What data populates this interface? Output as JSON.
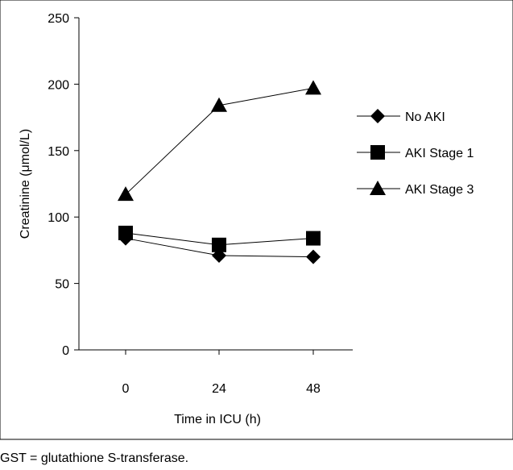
{
  "chart_data": {
    "type": "line",
    "x": [
      0,
      24,
      48
    ],
    "categories": [
      "0",
      "24",
      "48"
    ],
    "xlabel": "Time in ICU (h)",
    "ylabel": "Creatinine (μmol/L)",
    "ylim": [
      0,
      250
    ],
    "yticks": [
      0,
      50,
      100,
      150,
      200,
      250
    ],
    "ytick_labels": [
      "0",
      "50",
      "100",
      "150",
      "200",
      "250"
    ],
    "grid": false,
    "legend_position": "right",
    "series": [
      {
        "name": "No AKI",
        "marker": "diamond",
        "values": [
          84,
          71,
          70
        ]
      },
      {
        "name": "AKI Stage 1",
        "marker": "square",
        "values": [
          88,
          79,
          84
        ]
      },
      {
        "name": "AKI Stage 3",
        "marker": "triangle",
        "values": [
          117,
          184,
          197
        ]
      }
    ],
    "colors": {
      "line": "#000000",
      "marker": "#000000"
    }
  },
  "footnote": "GST = glutathione S-transferase."
}
